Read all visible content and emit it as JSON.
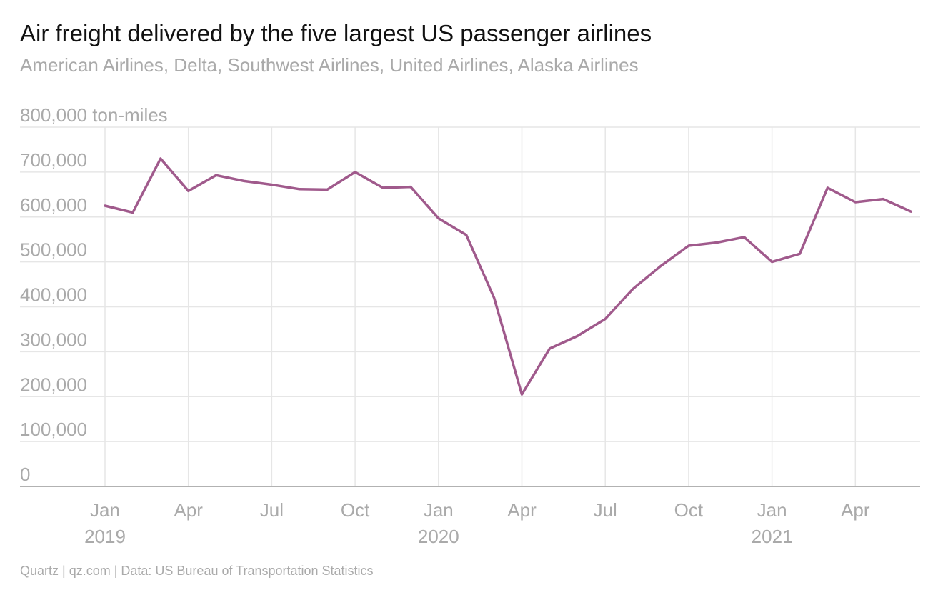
{
  "title": "Air freight delivered by the five largest US passenger airlines",
  "subtitle": "American Airlines, Delta, Southwest Airlines, United Airlines, Alaska Airlines",
  "source": "Quartz | qz.com | Data: US Bureau of Transportation Statistics",
  "colors": {
    "line": "#a05a8c",
    "grid": "#e6e6e6",
    "axis": "#999999",
    "text_muted": "#aaaaaa"
  },
  "chart_data": {
    "type": "line",
    "title": "Air freight delivered by the five largest US passenger airlines",
    "subtitle": "American Airlines, Delta, Southwest Airlines, United Airlines, Alaska Airlines",
    "ylabel": "",
    "y_unit": "ton-miles",
    "ylim": [
      0,
      800000
    ],
    "y_ticks": [
      0,
      100000,
      200000,
      300000,
      400000,
      500000,
      600000,
      700000,
      800000
    ],
    "y_tick_labels": [
      "0",
      "100,000",
      "200,000",
      "300,000",
      "400,000",
      "500,000",
      "600,000",
      "700,000",
      "800,000 ton-miles"
    ],
    "x_tick_labels": [
      {
        "month_index": 0,
        "label": "Jan",
        "year": "2019"
      },
      {
        "month_index": 3,
        "label": "Apr",
        "year": ""
      },
      {
        "month_index": 6,
        "label": "Jul",
        "year": ""
      },
      {
        "month_index": 9,
        "label": "Oct",
        "year": ""
      },
      {
        "month_index": 12,
        "label": "Jan",
        "year": "2020"
      },
      {
        "month_index": 15,
        "label": "Apr",
        "year": ""
      },
      {
        "month_index": 18,
        "label": "Jul",
        "year": ""
      },
      {
        "month_index": 21,
        "label": "Oct",
        "year": ""
      },
      {
        "month_index": 24,
        "label": "Jan",
        "year": "2021"
      },
      {
        "month_index": 27,
        "label": "Apr",
        "year": ""
      }
    ],
    "grid": true,
    "legend": "none",
    "series": [
      {
        "x": [
          "2019-01",
          "2019-02",
          "2019-03",
          "2019-04",
          "2019-05",
          "2019-06",
          "2019-07",
          "2019-08",
          "2019-09",
          "2019-10",
          "2019-11",
          "2019-12",
          "2020-01",
          "2020-02",
          "2020-03",
          "2020-04",
          "2020-05",
          "2020-06",
          "2020-07",
          "2020-08",
          "2020-09",
          "2020-10",
          "2020-11",
          "2020-12",
          "2021-01",
          "2021-02",
          "2021-03",
          "2021-04",
          "2021-05",
          "2021-06"
        ],
        "values": [
          625000,
          610000,
          730000,
          658000,
          693000,
          680000,
          672000,
          662000,
          661000,
          700000,
          665000,
          667000,
          597000,
          560000,
          420000,
          205000,
          307000,
          335000,
          373000,
          440000,
          491000,
          536000,
          543000,
          555000,
          500000,
          518000,
          665000,
          633000,
          640000,
          612000
        ]
      }
    ]
  }
}
